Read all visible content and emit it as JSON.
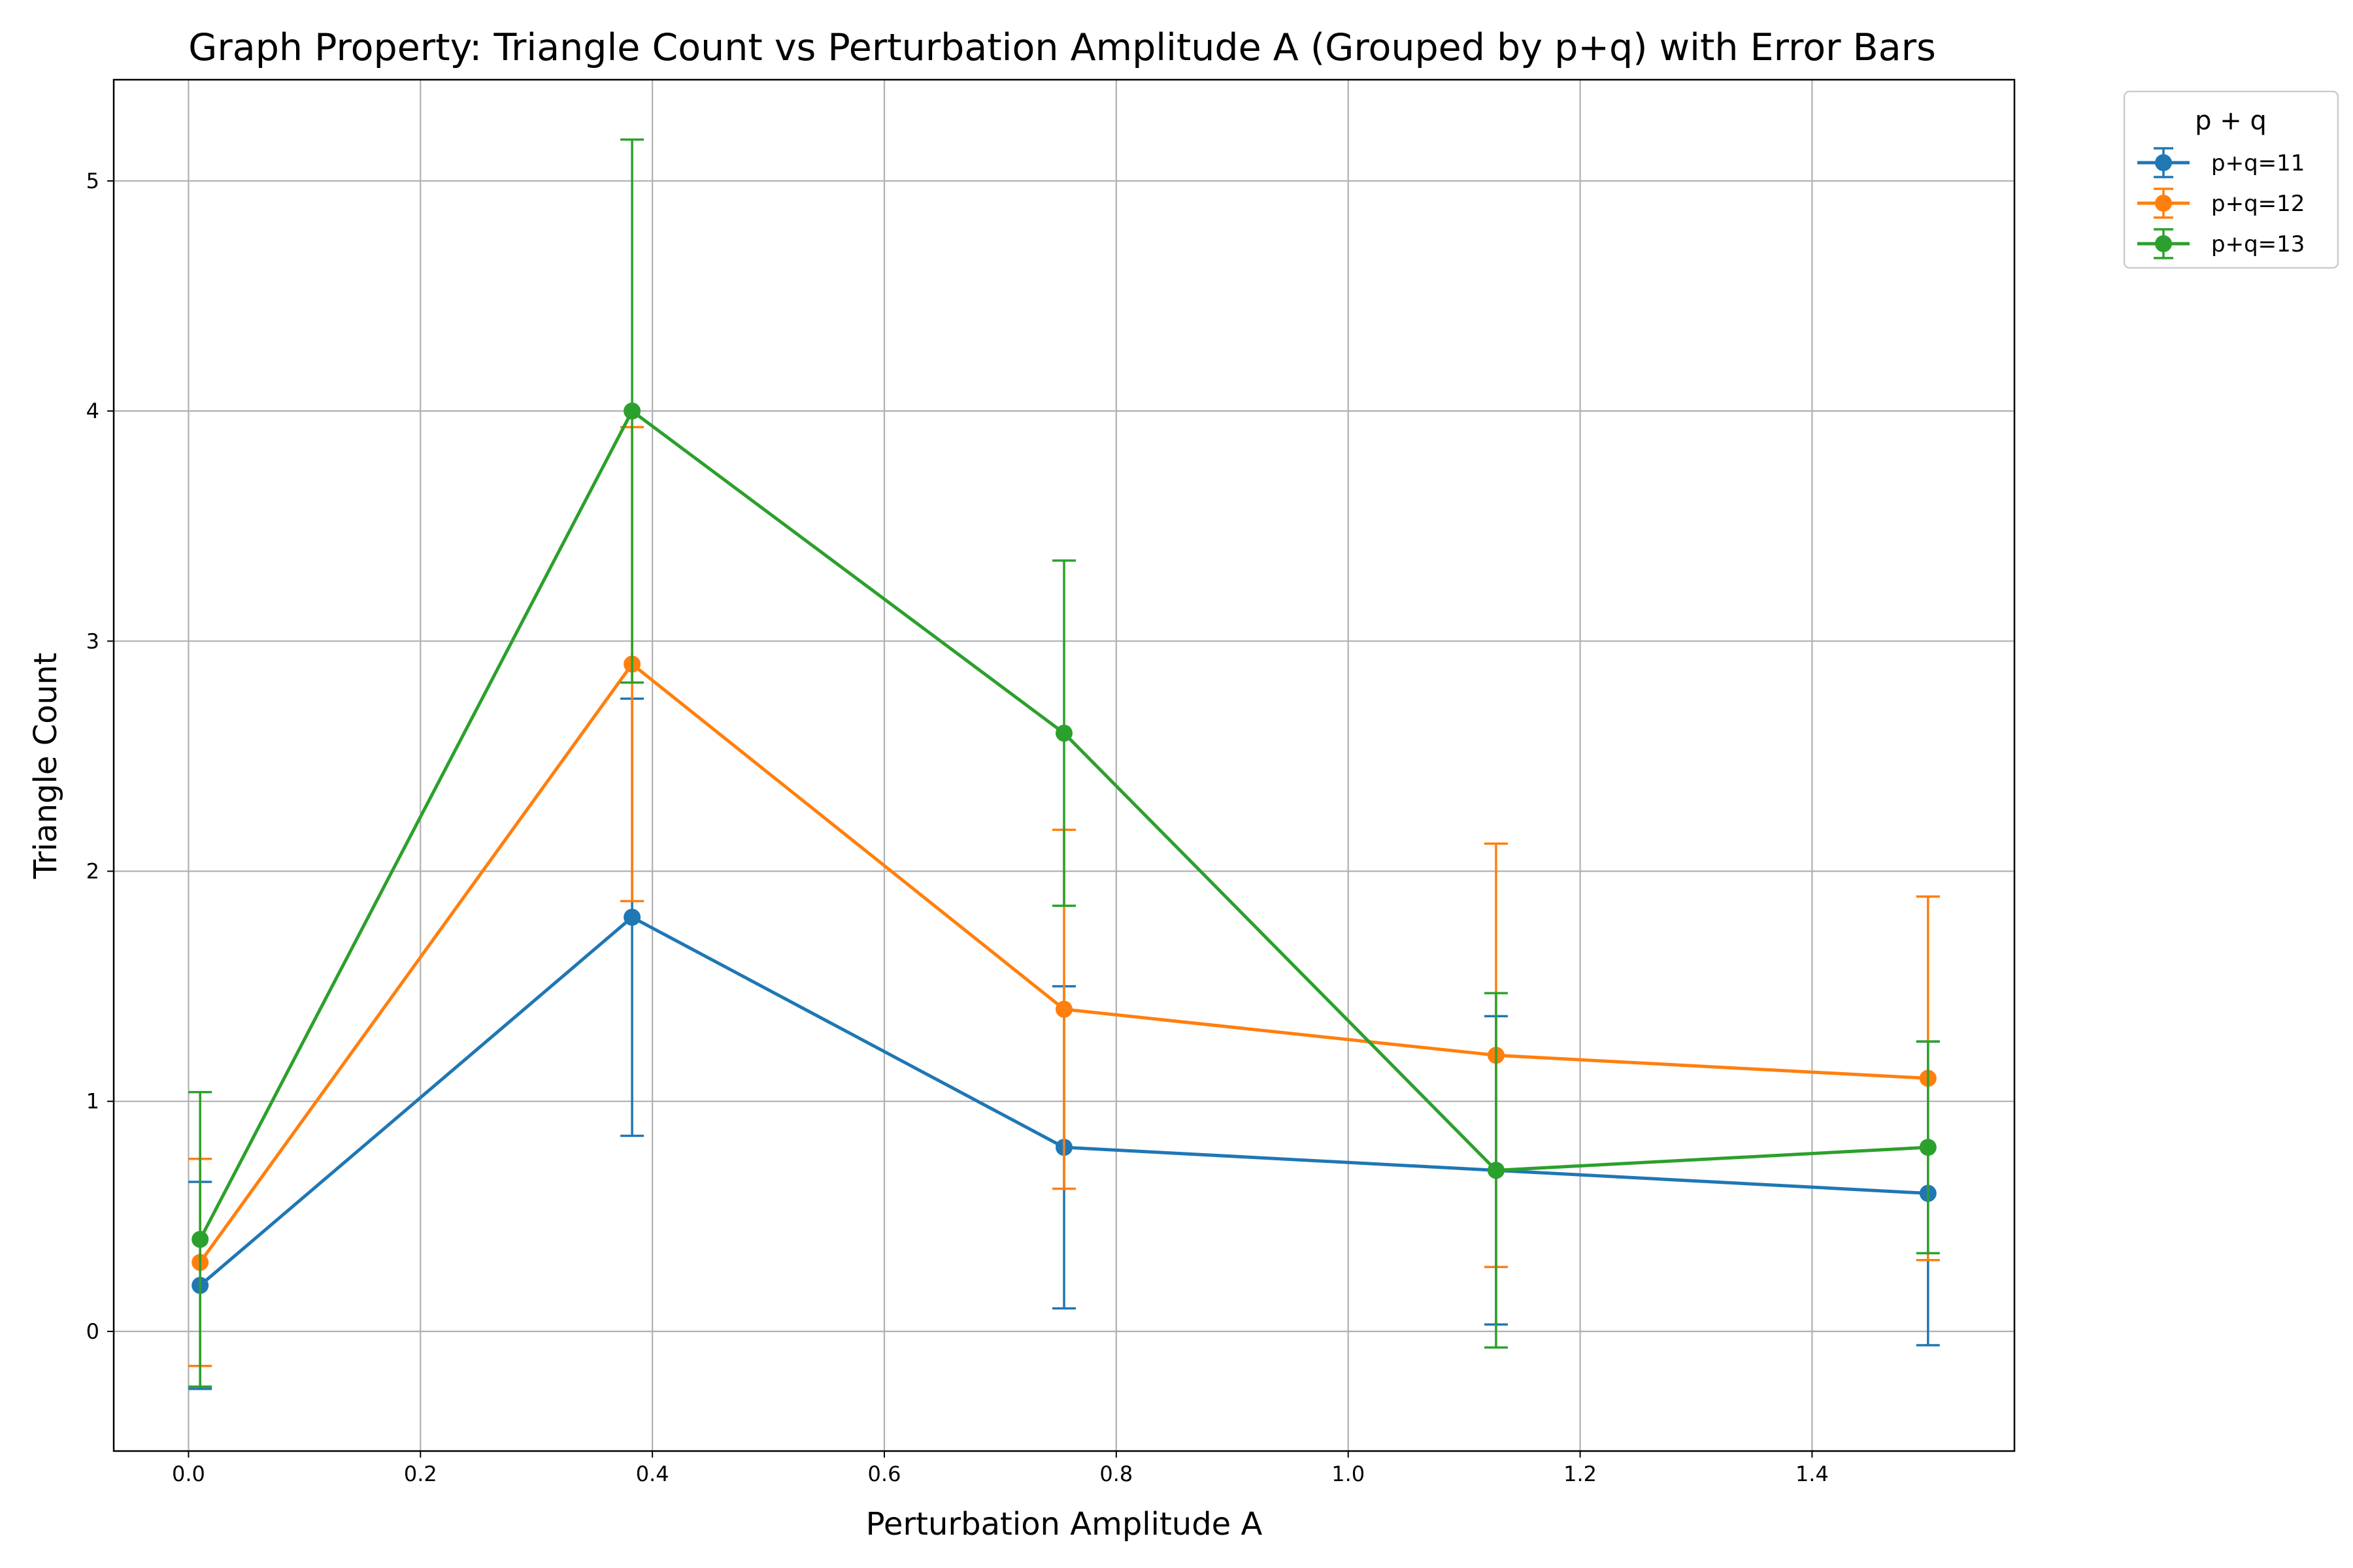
{
  "chart_data": {
    "type": "line",
    "title": "Graph Property: Triangle Count vs Perturbation Amplitude A (Grouped by p+q) with Error Bars",
    "xlabel": "Perturbation Amplitude A",
    "ylabel": "Triangle Count",
    "xlim": [
      -0.0645,
      1.5745
    ],
    "ylim": [
      -0.52,
      5.44
    ],
    "xticks": [
      0.0,
      0.2,
      0.4,
      0.6,
      0.8,
      1.0,
      1.2,
      1.4
    ],
    "xtick_labels": [
      "0.0",
      "0.2",
      "0.4",
      "0.6",
      "0.8",
      "1.0",
      "1.2",
      "1.4"
    ],
    "yticks": [
      0,
      1,
      2,
      3,
      4,
      5
    ],
    "ytick_labels": [
      "0",
      "1",
      "2",
      "3",
      "4",
      "5"
    ],
    "grid": true,
    "legend": {
      "title": "p + q",
      "placement": "outside-top-right"
    },
    "x": [
      0.01,
      0.3825,
      0.755,
      1.1275,
      1.5
    ],
    "series": [
      {
        "name": "p+q=11",
        "color": "#1f77b4",
        "values": [
          0.2,
          1.8,
          0.8,
          0.7,
          0.6
        ],
        "errors": [
          0.45,
          0.95,
          0.7,
          0.67,
          0.66
        ]
      },
      {
        "name": "p+q=12",
        "color": "#ff7f0e",
        "values": [
          0.3,
          2.9,
          1.4,
          1.2,
          1.1
        ],
        "errors": [
          0.45,
          1.03,
          0.78,
          0.92,
          0.79
        ]
      },
      {
        "name": "p+q=13",
        "color": "#2ca02c",
        "values": [
          0.4,
          4.0,
          2.6,
          0.7,
          0.8
        ],
        "errors": [
          0.64,
          1.18,
          0.75,
          0.77,
          0.46
        ]
      }
    ]
  }
}
